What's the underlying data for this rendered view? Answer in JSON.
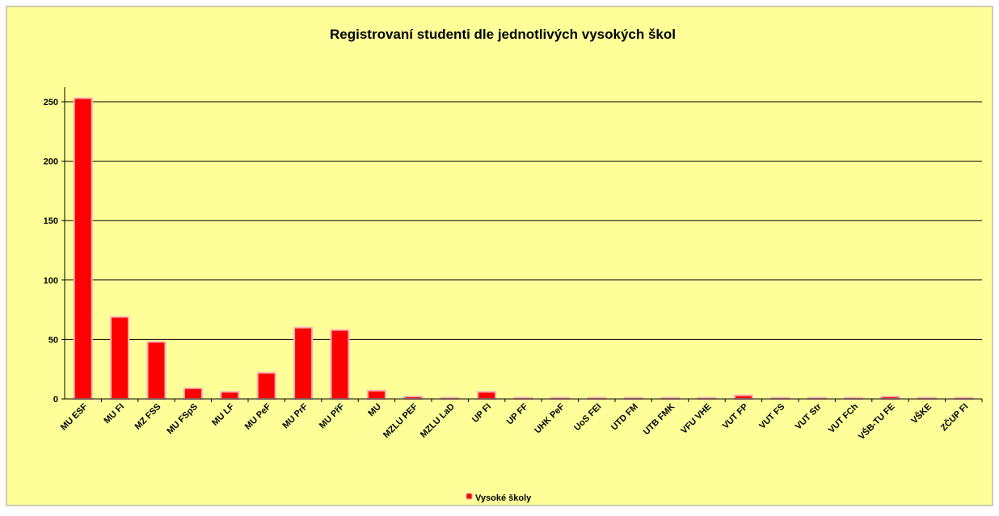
{
  "chart_data": {
    "type": "bar",
    "title": "Registrovaní studenti dle jednotlivých vysokých škol",
    "categories": [
      "MU ESF",
      "MU FI",
      "MZ FSS",
      "MU FSpS",
      "MU LF",
      "MU PeF",
      "MU PrF",
      "MU PřF",
      "MU",
      "MZLU PEF",
      "MZLU LaD",
      "UP FI",
      "UP FF",
      "UHK PeF",
      "UoS FEI",
      "UTD FM",
      "UTB FMK",
      "VFU VHE",
      "VUT FP",
      "VUT FS",
      "VUT Str",
      "VUT FCh",
      "VŠB-TU FE",
      "VŠKE",
      "ZČUP FI"
    ],
    "series": [
      {
        "name": "Vysoké školy",
        "color": "#ff0000",
        "values": [
          253,
          69,
          48,
          9,
          6,
          22,
          60,
          58,
          7,
          2,
          1,
          6,
          1,
          1,
          1,
          1,
          1,
          1,
          3,
          1,
          1,
          1,
          2,
          1,
          1
        ]
      }
    ],
    "ylim": [
      0,
      250
    ],
    "yticks": [
      0,
      50,
      100,
      150,
      200,
      250
    ],
    "grid": true,
    "legend": "bottom"
  }
}
